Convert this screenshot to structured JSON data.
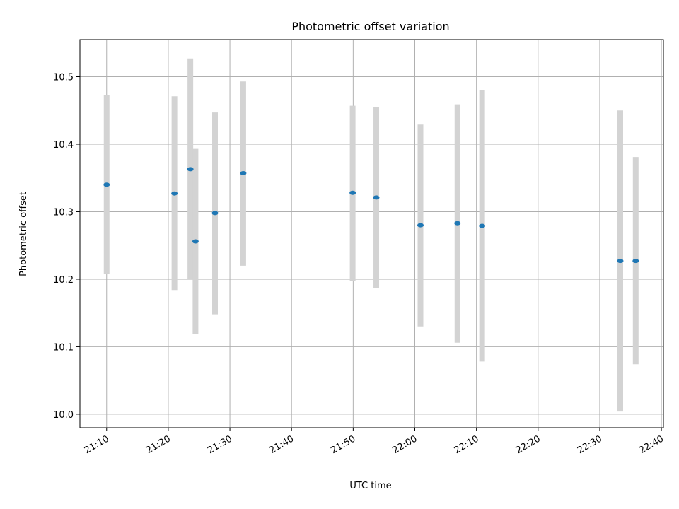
{
  "chart_data": {
    "type": "scatter",
    "title": "Photometric offset variation",
    "xlabel": "UTC time",
    "ylabel": "Photometric offset",
    "x_unit": "HH:MM UTC",
    "xlim": [
      "21:05:40",
      "22:40:20"
    ],
    "ylim": [
      9.98,
      10.555
    ],
    "xticks": [
      "21:10",
      "21:20",
      "21:30",
      "21:40",
      "21:50",
      "22:00",
      "22:10",
      "22:20",
      "22:30",
      "22:40"
    ],
    "yticks": [
      10.0,
      10.1,
      10.2,
      10.3,
      10.4,
      10.5
    ],
    "grid": true,
    "series": [
      {
        "marker_color": "#1f77b4",
        "errorbar_color": "#d3d3d3",
        "points": [
          {
            "x": "21:10:00",
            "y": 10.34,
            "y_low": 10.208,
            "y_high": 10.473
          },
          {
            "x": "21:21:00",
            "y": 10.327,
            "y_low": 10.184,
            "y_high": 10.471
          },
          {
            "x": "21:23:35",
            "y": 10.363,
            "y_low": 10.2,
            "y_high": 10.527
          },
          {
            "x": "21:24:25",
            "y": 10.256,
            "y_low": 10.119,
            "y_high": 10.393
          },
          {
            "x": "21:27:35",
            "y": 10.298,
            "y_low": 10.148,
            "y_high": 10.447
          },
          {
            "x": "21:32:10",
            "y": 10.357,
            "y_low": 10.22,
            "y_high": 10.493
          },
          {
            "x": "21:49:55",
            "y": 10.328,
            "y_low": 10.197,
            "y_high": 10.457
          },
          {
            "x": "21:53:45",
            "y": 10.321,
            "y_low": 10.187,
            "y_high": 10.455
          },
          {
            "x": "22:00:55",
            "y": 10.28,
            "y_low": 10.13,
            "y_high": 10.429
          },
          {
            "x": "22:06:55",
            "y": 10.283,
            "y_low": 10.106,
            "y_high": 10.459
          },
          {
            "x": "22:10:55",
            "y": 10.279,
            "y_low": 10.078,
            "y_high": 10.48
          },
          {
            "x": "22:33:20",
            "y": 10.227,
            "y_low": 10.004,
            "y_high": 10.45
          },
          {
            "x": "22:35:50",
            "y": 10.227,
            "y_low": 10.074,
            "y_high": 10.381
          }
        ]
      }
    ]
  }
}
